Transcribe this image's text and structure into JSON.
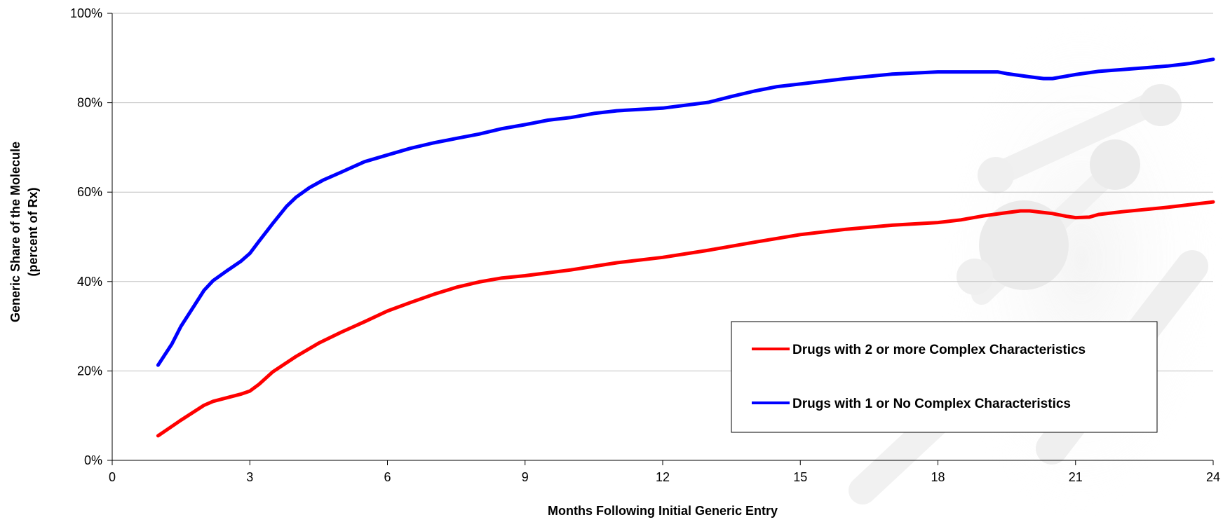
{
  "chart_data": {
    "type": "line",
    "xlabel": "Months Following Initial Generic Entry",
    "ylabel_line1": "Generic Share of the Molecule",
    "ylabel_line2": "(percent of Rx)",
    "xlim": [
      0,
      24
    ],
    "ylim": [
      0,
      100
    ],
    "xticks": [
      0,
      3,
      6,
      9,
      12,
      15,
      18,
      21,
      24
    ],
    "yticks": [
      0,
      20,
      40,
      60,
      80,
      100
    ],
    "ytick_labels": [
      "0%",
      "20%",
      "40%",
      "60%",
      "80%",
      "100%"
    ],
    "grid": "horizontal",
    "legend_position": "lower-right",
    "series": [
      {
        "name": "Drugs with 2 or more Complex Characteristics",
        "color": "#ff0000",
        "x": [
          1,
          1.5,
          2,
          2.2,
          2.5,
          2.8,
          3,
          3.2,
          3.5,
          4,
          4.5,
          5,
          5.5,
          6,
          6.5,
          7,
          7.5,
          8,
          8.5,
          9,
          10,
          11,
          12,
          13,
          14,
          15,
          16,
          17,
          18,
          18.5,
          19,
          19.5,
          19.8,
          20,
          20.5,
          20.8,
          21,
          21.3,
          21.5,
          22,
          23,
          24
        ],
        "y": [
          5.5,
          9,
          12.3,
          13.2,
          14,
          14.8,
          15.5,
          17,
          19.8,
          23.2,
          26.2,
          28.7,
          31,
          33.4,
          35.3,
          37.1,
          38.7,
          39.9,
          40.8,
          41.3,
          42.6,
          44.2,
          45.4,
          47,
          48.8,
          50.5,
          51.7,
          52.6,
          53.2,
          53.8,
          54.7,
          55.4,
          55.8,
          55.8,
          55.2,
          54.6,
          54.3,
          54.4,
          55,
          55.6,
          56.6,
          57.8
        ]
      },
      {
        "name": "Drugs with 1 or No Complex Characteristics",
        "color": "#0000ff",
        "x": [
          1,
          1.3,
          1.5,
          1.8,
          2,
          2.2,
          2.5,
          2.8,
          3,
          3.2,
          3.5,
          3.8,
          4,
          4.3,
          4.6,
          5,
          5.5,
          6,
          6.5,
          7,
          7.5,
          8,
          8.5,
          9,
          9.5,
          10,
          10.5,
          11,
          12,
          13,
          13.5,
          14,
          14.5,
          15,
          16,
          17,
          18,
          18.5,
          19,
          19.3,
          19.5,
          20,
          20.3,
          20.5,
          21,
          21.5,
          22,
          23,
          23.5,
          24
        ],
        "y": [
          21.3,
          26,
          30,
          34.8,
          38,
          40.2,
          42.4,
          44.5,
          46.3,
          49,
          53,
          56.8,
          58.8,
          61,
          62.7,
          64.5,
          66.8,
          68.3,
          69.8,
          71,
          72,
          73,
          74.2,
          75.1,
          76.1,
          76.7,
          77.6,
          78.2,
          78.8,
          80.1,
          81.4,
          82.6,
          83.6,
          84.2,
          85.4,
          86.4,
          86.9,
          86.9,
          86.9,
          86.9,
          86.5,
          85.8,
          85.4,
          85.4,
          86.3,
          87,
          87.4,
          88.2,
          88.8,
          89.7
        ]
      }
    ]
  }
}
